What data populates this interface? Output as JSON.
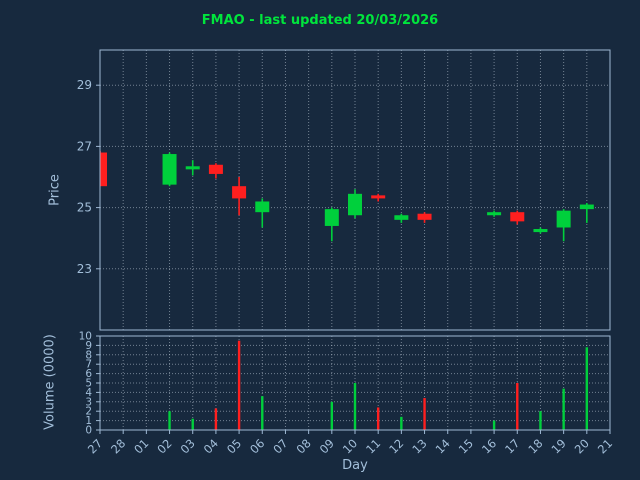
{
  "title": "FMAO - last updated 20/03/2026",
  "xlabel": "Day",
  "ylabel_price": "Price",
  "ylabel_volume": "Volume (0000)",
  "colors": {
    "background": "#17293e",
    "text": "#a3bfda",
    "frame": "#9fb9d4",
    "grid": "#cdd9e5",
    "up": "#00d03c",
    "down": "#ff1f1f",
    "title": "#00e53c"
  },
  "chart_data": {
    "type": "candlestick",
    "title": "FMAO - last updated 20/03/2026",
    "xlabel": "Day",
    "ylabel": "Price",
    "ylabel2": "Volume (0000)",
    "categories": [
      "27",
      "28",
      "01",
      "02",
      "03",
      "04",
      "05",
      "06",
      "07",
      "08",
      "09",
      "10",
      "11",
      "12",
      "13",
      "14",
      "15",
      "16",
      "17",
      "18",
      "19",
      "20",
      "21"
    ],
    "price_ticks": [
      23,
      25,
      27,
      29
    ],
    "price_range": [
      21.0,
      30.15
    ],
    "volume_ticks": [
      0,
      1,
      2,
      3,
      4,
      5,
      6,
      7,
      8,
      9,
      10
    ],
    "volume_range": [
      0,
      10
    ],
    "grid": true,
    "candles": [
      {
        "day": "27",
        "open": 26.8,
        "high": 26.85,
        "low": 25.7,
        "close": 25.7,
        "volume": 0
      },
      {
        "day": "02",
        "open": 25.75,
        "high": 26.8,
        "low": 25.7,
        "close": 26.75,
        "volume": 2.0
      },
      {
        "day": "03",
        "open": 26.25,
        "high": 26.55,
        "low": 26.05,
        "close": 26.35,
        "volume": 1.2
      },
      {
        "day": "04",
        "open": 26.4,
        "high": 26.45,
        "low": 25.95,
        "close": 26.1,
        "volume": 2.3
      },
      {
        "day": "05",
        "open": 25.7,
        "high": 26.0,
        "low": 24.75,
        "close": 25.3,
        "volume": 9.5
      },
      {
        "day": "06",
        "open": 24.85,
        "high": 25.3,
        "low": 24.35,
        "close": 25.2,
        "volume": 3.6
      },
      {
        "day": "09",
        "open": 24.4,
        "high": 25.0,
        "low": 23.9,
        "close": 24.95,
        "volume": 3.0
      },
      {
        "day": "10",
        "open": 24.75,
        "high": 25.6,
        "low": 24.65,
        "close": 25.45,
        "volume": 5.0
      },
      {
        "day": "11",
        "open": 25.4,
        "high": 25.45,
        "low": 25.2,
        "close": 25.3,
        "volume": 2.4
      },
      {
        "day": "12",
        "open": 24.6,
        "high": 24.8,
        "low": 24.5,
        "close": 24.75,
        "volume": 1.4
      },
      {
        "day": "13",
        "open": 24.8,
        "high": 24.85,
        "low": 24.5,
        "close": 24.6,
        "volume": 3.4
      },
      {
        "day": "16",
        "open": 24.75,
        "high": 24.9,
        "low": 24.7,
        "close": 24.85,
        "volume": 1.0
      },
      {
        "day": "17",
        "open": 24.85,
        "high": 24.9,
        "low": 24.45,
        "close": 24.55,
        "volume": 5.0
      },
      {
        "day": "18",
        "open": 24.2,
        "high": 24.35,
        "low": 24.15,
        "close": 24.3,
        "volume": 2.0
      },
      {
        "day": "19",
        "open": 24.35,
        "high": 24.95,
        "low": 23.9,
        "close": 24.9,
        "volume": 4.4
      },
      {
        "day": "20",
        "open": 24.95,
        "high": 25.15,
        "low": 24.5,
        "close": 25.1,
        "volume": 8.8
      }
    ]
  }
}
